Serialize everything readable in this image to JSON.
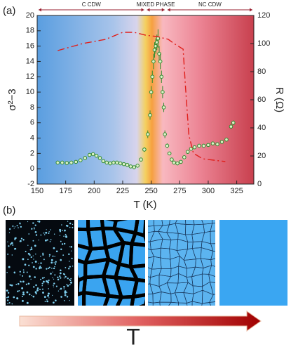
{
  "chart_data": {
    "type": "scatter-line",
    "panel_labels": [
      "(a)",
      "(b)"
    ],
    "x_label": "T (K)",
    "y_label": "σ²−3",
    "y2_label": "R (Ω)",
    "arrow_label": "T",
    "annotations": [
      {
        "text": "C CDW",
        "x": [
          150,
          245
        ]
      },
      {
        "text": "MIXED PHASE",
        "x": [
          245,
          263
        ]
      },
      {
        "text": "NC CDW",
        "x": [
          263,
          340
        ]
      }
    ],
    "xlim": [
      150,
      340
    ],
    "xticks": [
      150,
      175,
      200,
      225,
      250,
      275,
      300,
      325
    ],
    "ylim": [
      -2,
      20
    ],
    "yticks": [
      -2,
      0,
      2,
      4,
      6,
      8,
      10,
      12,
      14,
      16,
      18,
      20
    ],
    "y2lim": [
      0,
      120
    ],
    "y2ticks": [
      0,
      20,
      40,
      60,
      80,
      100,
      120
    ],
    "series": [
      {
        "name": "σ²−3",
        "color": "#2e8b2e",
        "marker": "circle",
        "x": [
          168,
          172,
          176,
          180,
          184,
          188,
          192,
          196,
          199,
          202,
          205,
          208,
          211,
          214,
          217,
          220,
          223,
          226,
          229,
          232,
          235,
          238,
          241,
          244,
          247,
          249,
          250,
          251,
          252,
          253,
          254,
          255,
          256,
          257,
          258,
          259,
          260,
          261,
          262,
          264,
          266,
          268,
          270,
          273,
          276,
          279,
          282,
          285,
          288,
          292,
          296,
          300,
          304,
          308,
          312,
          316,
          320,
          322
        ],
        "values": [
          0.8,
          0.8,
          0.75,
          0.8,
          0.9,
          1.1,
          1.4,
          1.8,
          1.9,
          1.7,
          1.4,
          1.0,
          0.8,
          0.7,
          0.8,
          0.8,
          0.7,
          0.6,
          0.5,
          0.3,
          0.2,
          0.4,
          1.2,
          2.5,
          4.5,
          7,
          10,
          12,
          14,
          15.5,
          16,
          16.5,
          17,
          15,
          14,
          12,
          10,
          8,
          4.5,
          3,
          2,
          1.2,
          0.8,
          0.7,
          0.9,
          1.5,
          2.2,
          2.6,
          2.8,
          3,
          3,
          3.1,
          3.3,
          3.2,
          3.5,
          3.8,
          5.5,
          6
        ],
        "errors": [
          0.1,
          0.1,
          0.1,
          0.1,
          0.1,
          0.1,
          0.1,
          0.1,
          0.1,
          0.1,
          0.1,
          0.1,
          0.1,
          0.1,
          0.1,
          0.1,
          0.1,
          0.1,
          0.1,
          0.1,
          0.1,
          0.1,
          0.2,
          0.3,
          0.5,
          0.6,
          0.8,
          0.8,
          1,
          1,
          1,
          1,
          1.2,
          1,
          1,
          0.8,
          0.8,
          0.6,
          0.5,
          0.3,
          0.2,
          0.1,
          0.1,
          0.1,
          0.1,
          0.1,
          0.1,
          0.2,
          0.2,
          0.2,
          0.2,
          0.2,
          0.2,
          0.2,
          0.2,
          0.2,
          0.3,
          0.3
        ]
      },
      {
        "name": "R",
        "color": "#e0201c",
        "axis": "y2",
        "dash": "10 4 2 4",
        "x": [
          168,
          190,
          210,
          225,
          235,
          245,
          255,
          265,
          270,
          278,
          280,
          283,
          287,
          295,
          305,
          315
        ],
        "values": [
          95,
          100,
          103,
          108,
          108,
          106,
          105,
          103,
          100,
          96,
          70,
          35,
          22,
          18,
          17,
          16
        ]
      }
    ]
  }
}
